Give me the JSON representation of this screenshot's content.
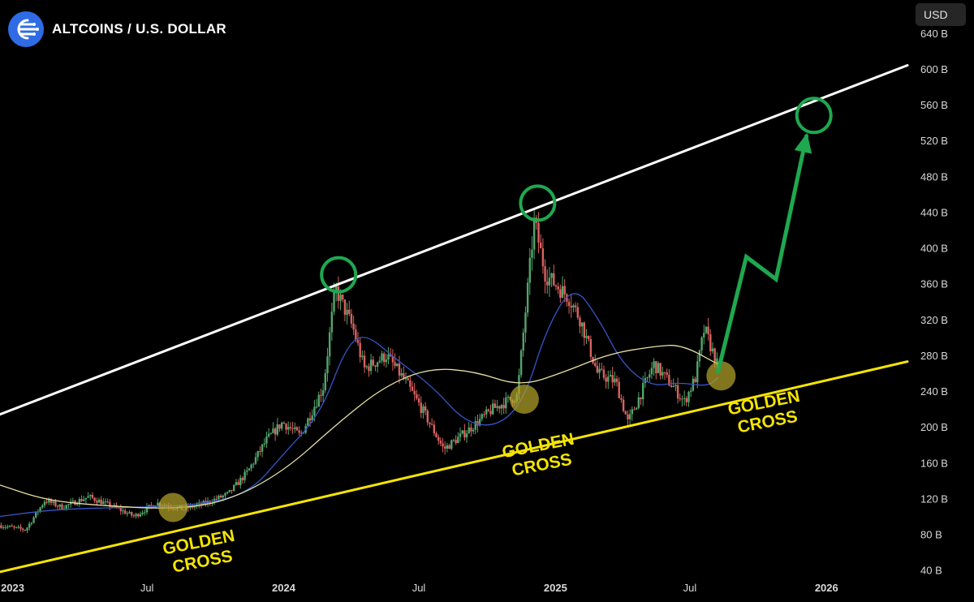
{
  "header": {
    "title": "ALTCOINS / U.S. DOLLAR",
    "logo_icon": "speed-stream-logo-icon"
  },
  "currency_button": {
    "label": "USD"
  },
  "colors": {
    "background": "#000000",
    "up": "#52a66b",
    "down": "#d9625f",
    "ma_short": "#3455c9",
    "ma_long": "#e6e0a4",
    "resistance": "#ffffff",
    "support": "#f5e400",
    "highlight_green": "#1fa84f",
    "highlight_yellow": "#b3a22a",
    "logo": "#2f6be5"
  },
  "chart_data": {
    "type": "candlestick",
    "x_axis": {
      "range": [
        "2022-12-15",
        "2026-04-20"
      ],
      "tick_labels": [
        {
          "label": "2023",
          "date": "2023-01-01"
        },
        {
          "label": "Jul",
          "date": "2023-07-01"
        },
        {
          "label": "2024",
          "date": "2024-01-01"
        },
        {
          "label": "Jul",
          "date": "2024-07-01"
        },
        {
          "label": "2025",
          "date": "2025-01-01"
        },
        {
          "label": "Jul",
          "date": "2025-07-01"
        },
        {
          "label": "2026",
          "date": "2026-01-01"
        }
      ]
    },
    "y_axis": {
      "unit": "B",
      "range": [
        27,
        677
      ],
      "ticks": [
        40,
        80,
        120,
        160,
        200,
        240,
        280,
        320,
        360,
        400,
        440,
        480,
        520,
        560,
        600,
        640
      ],
      "tick_labels": [
        "40 B",
        "80 B",
        "120 B",
        "160 B",
        "200 B",
        "240 B",
        "280 B",
        "320 B",
        "360 B",
        "400 B",
        "440 B",
        "480 B",
        "520 B",
        "560 B",
        "600 B",
        "640 B"
      ]
    },
    "price_path": [
      [
        "2022-12-15",
        90
      ],
      [
        "2023-01-20",
        85
      ],
      [
        "2023-02-15",
        118
      ],
      [
        "2023-03-10",
        110
      ],
      [
        "2023-04-15",
        122
      ],
      [
        "2023-05-20",
        110
      ],
      [
        "2023-06-15",
        100
      ],
      [
        "2023-07-15",
        115
      ],
      [
        "2023-08-20",
        108
      ],
      [
        "2023-09-20",
        115
      ],
      [
        "2023-10-20",
        125
      ],
      [
        "2023-11-15",
        150
      ],
      [
        "2023-12-10",
        185
      ],
      [
        "2024-01-01",
        205
      ],
      [
        "2024-01-25",
        190
      ],
      [
        "2024-02-25",
        245
      ],
      [
        "2024-03-12",
        355
      ],
      [
        "2024-04-05",
        310
      ],
      [
        "2024-04-20",
        265
      ],
      [
        "2024-05-20",
        280
      ],
      [
        "2024-06-15",
        250
      ],
      [
        "2024-07-10",
        215
      ],
      [
        "2024-08-05",
        175
      ],
      [
        "2024-09-05",
        195
      ],
      [
        "2024-10-10",
        220
      ],
      [
        "2024-11-12",
        235
      ],
      [
        "2024-12-05",
        430
      ],
      [
        "2024-12-20",
        370
      ],
      [
        "2025-01-20",
        345
      ],
      [
        "2025-02-05",
        320
      ],
      [
        "2025-02-28",
        260
      ],
      [
        "2025-03-25",
        250
      ],
      [
        "2025-04-10",
        205
      ],
      [
        "2025-05-15",
        270
      ],
      [
        "2025-06-10",
        245
      ],
      [
        "2025-06-25",
        228
      ],
      [
        "2025-07-10",
        255
      ],
      [
        "2025-07-22",
        310
      ],
      [
        "2025-08-08",
        270
      ]
    ],
    "series": [
      {
        "name": "",
        "kind": "moving-average-short",
        "points": [
          [
            "2022-12-15",
            100
          ],
          [
            "2023-03-01",
            108
          ],
          [
            "2023-06-01",
            110
          ],
          [
            "2023-09-01",
            112
          ],
          [
            "2023-11-15",
            125
          ],
          [
            "2024-01-01",
            170
          ],
          [
            "2024-02-20",
            215
          ],
          [
            "2024-03-25",
            290
          ],
          [
            "2024-04-20",
            305
          ],
          [
            "2024-06-01",
            275
          ],
          [
            "2024-07-20",
            245
          ],
          [
            "2024-09-01",
            205
          ],
          [
            "2024-10-15",
            200
          ],
          [
            "2024-11-20",
            230
          ],
          [
            "2024-12-20",
            310
          ],
          [
            "2025-01-25",
            360
          ],
          [
            "2025-03-01",
            320
          ],
          [
            "2025-04-01",
            270
          ],
          [
            "2025-05-10",
            245
          ],
          [
            "2025-06-15",
            250
          ],
          [
            "2025-07-25",
            245
          ],
          [
            "2025-08-08",
            255
          ]
        ]
      },
      {
        "name": "",
        "kind": "moving-average-long",
        "points": [
          [
            "2022-12-15",
            135
          ],
          [
            "2023-02-15",
            118
          ],
          [
            "2023-05-01",
            112
          ],
          [
            "2023-08-01",
            108
          ],
          [
            "2023-10-15",
            116
          ],
          [
            "2024-01-01",
            150
          ],
          [
            "2024-03-15",
            205
          ],
          [
            "2024-05-15",
            245
          ],
          [
            "2024-07-15",
            266
          ],
          [
            "2024-09-15",
            262
          ],
          [
            "2024-11-15",
            245
          ],
          [
            "2025-01-15",
            262
          ],
          [
            "2025-03-15",
            282
          ],
          [
            "2025-05-15",
            290
          ],
          [
            "2025-06-20",
            292
          ],
          [
            "2025-08-08",
            270
          ]
        ]
      }
    ],
    "trendlines": [
      {
        "kind": "resistance",
        "from": [
          "2022-12-15",
          214
        ],
        "to": [
          "2026-04-20",
          604
        ]
      },
      {
        "kind": "support",
        "from": [
          "2022-12-15",
          38
        ],
        "to": [
          "2026-04-20",
          273
        ]
      }
    ],
    "highlights": [
      {
        "kind": "green-circle",
        "at": [
          "2024-03-15",
          370
        ]
      },
      {
        "kind": "green-circle",
        "at": [
          "2024-12-08",
          450
        ]
      },
      {
        "kind": "green-circle",
        "at": [
          "2025-12-15",
          548
        ]
      },
      {
        "kind": "golden-cross-dot",
        "at": [
          "2023-08-05",
          110
        ]
      },
      {
        "kind": "golden-cross-dot",
        "at": [
          "2024-11-20",
          231
        ]
      },
      {
        "kind": "golden-cross-dot",
        "at": [
          "2025-08-12",
          257
        ]
      }
    ],
    "projection": {
      "path": [
        [
          "2025-08-08",
          262
        ],
        [
          "2025-09-15",
          390
        ],
        [
          "2025-10-25",
          365
        ],
        [
          "2025-12-05",
          525
        ]
      ]
    },
    "annotations": [
      {
        "lines": [
          "GOLDEN",
          "CROSS"
        ],
        "at": [
          "2023-09-10",
          65
        ],
        "rotate": -11
      },
      {
        "lines": [
          "GOLDEN",
          "CROSS"
        ],
        "at": [
          "2024-12-10",
          173
        ],
        "rotate": -11
      },
      {
        "lines": [
          "GOLDEN",
          "CROSS"
        ],
        "at": [
          "2025-10-10",
          221
        ],
        "rotate": -11
      }
    ],
    "candle_count": 330,
    "grid": false,
    "legend": "none"
  }
}
